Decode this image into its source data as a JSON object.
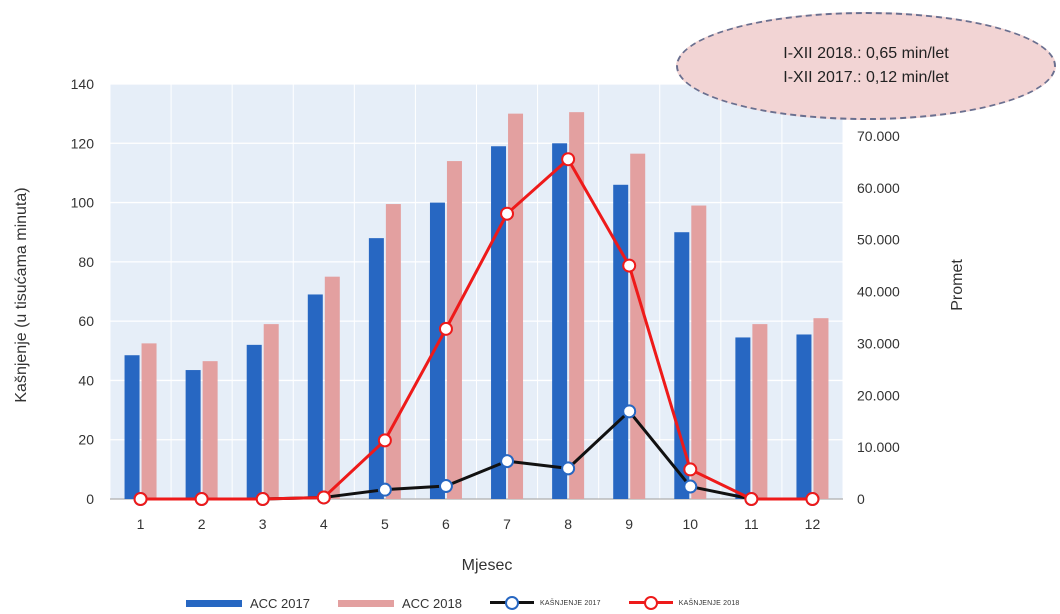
{
  "annotation": {
    "line1": "I-XII 2018.: 0,65 min/let",
    "line2": "I-XII 2017.: 0,12 min/let"
  },
  "colors": {
    "acc2017": "#2767c2",
    "acc2018": "#e3a0a0",
    "delay2017": "#111111",
    "delay2017_marker": "#2767c2",
    "delay2018": "#ee1a1a",
    "plot_bg": "#e6eef8",
    "grid": "#ffffff"
  },
  "legend": {
    "acc2017": "ACC 2017",
    "acc2018": "ACC 2018",
    "delay2017": "KAŠNJENJE 2017",
    "delay2018": "KAŠNJENJE 2018"
  },
  "chart_data": {
    "type": "bar",
    "categories": [
      "1",
      "2",
      "3",
      "4",
      "5",
      "6",
      "7",
      "8",
      "9",
      "10",
      "11",
      "12"
    ],
    "xlabel": "Mjesec",
    "ylabel": "Kašnjenje (u tisućama minuta)",
    "ylabel_right": "Promet",
    "ylim": [
      0,
      140
    ],
    "ylim_right": [
      0,
      80000
    ],
    "yticks": [
      "0",
      "20",
      "40",
      "60",
      "80",
      "100",
      "120",
      "140"
    ],
    "yticks_right": [
      "0",
      "10.000",
      "20.000",
      "30.000",
      "40.000",
      "50.000",
      "60.000",
      "70.000"
    ],
    "grid": true,
    "legend_position": "bottom",
    "series": [
      {
        "name": "ACC 2017",
        "type": "bar",
        "axis": "left",
        "values": [
          48.5,
          43.5,
          52,
          69,
          88,
          100,
          119,
          120,
          106,
          90,
          54.5,
          55.5
        ]
      },
      {
        "name": "ACC 2018",
        "type": "bar",
        "axis": "left",
        "values": [
          52.5,
          46.5,
          59,
          75,
          99.5,
          114,
          130,
          130.5,
          116.5,
          99,
          59,
          61
        ]
      },
      {
        "name": "KAŠNJENJE 2017",
        "type": "line",
        "axis": "right",
        "values": [
          0,
          0,
          0,
          300,
          1800,
          2500,
          7300,
          5900,
          16900,
          2400,
          0,
          0
        ]
      },
      {
        "name": "KAŠNJENJE 2018",
        "type": "line",
        "axis": "right",
        "values": [
          0,
          0,
          0,
          300,
          11300,
          32800,
          55000,
          65500,
          45000,
          5700,
          0,
          0
        ]
      }
    ]
  }
}
